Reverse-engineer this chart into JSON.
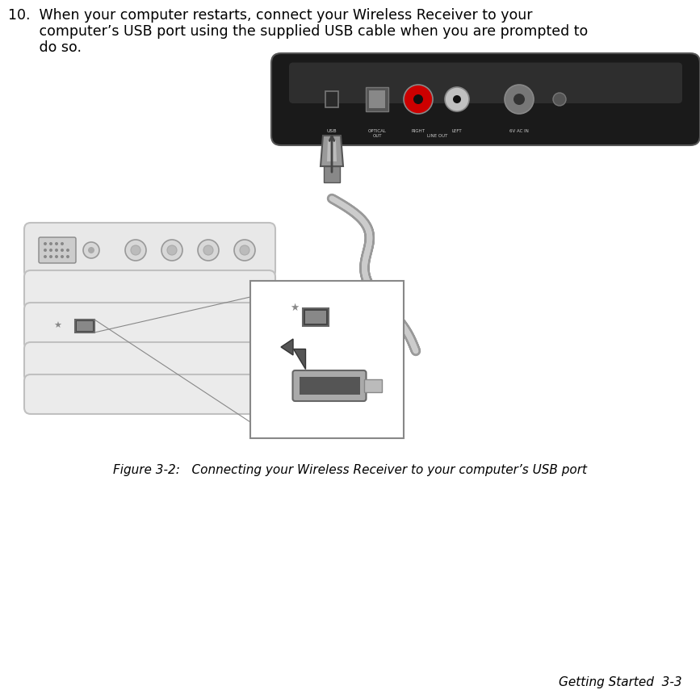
{
  "background_color": "#ffffff",
  "page_width": 8.67,
  "page_height": 8.55,
  "dpi": 100,
  "body_text_line1": "10.  When your computer restarts, connect your Wireless Receiver to your",
  "body_text_line2": "       computer’s USB port using the supplied USB cable when you are prompted to",
  "body_text_line3": "       do so.",
  "caption_text": "Figure 3-2:   Connecting your Wireless Receiver to your computer’s USB port",
  "footer_text": "Getting Started  3-3",
  "body_font_size": 12.5,
  "caption_font_size": 11.0,
  "footer_font_size": 11.0,
  "text_color": "#000000",
  "text_color_light": "#aaaaaa",
  "device_color": "#1a1a1a",
  "device_highlight": "#3d3d3d",
  "device_edge": "#555555",
  "port_dark": "#2a2a2a",
  "port_rect_fill": "#383838",
  "rca_red": "#cc0000",
  "rca_white": "#c0c0c0",
  "rca_inner": "#111111",
  "ac_port": "#888888",
  "cable_outer": "#aaaaaa",
  "cable_inner": "#c8c8c8",
  "connector_fill": "#999999",
  "connector_dark": "#666666",
  "panel_fill": "#e8e8e8",
  "panel_edge": "#c0c0c0",
  "panel_fill2": "#ebebeb",
  "zoom_fill": "#ffffff",
  "zoom_edge": "#888888",
  "arrow_color": "#555555",
  "vga_fill": "#cccccc",
  "vga_dot": "#888888",
  "port_label_color": "#cccccc"
}
